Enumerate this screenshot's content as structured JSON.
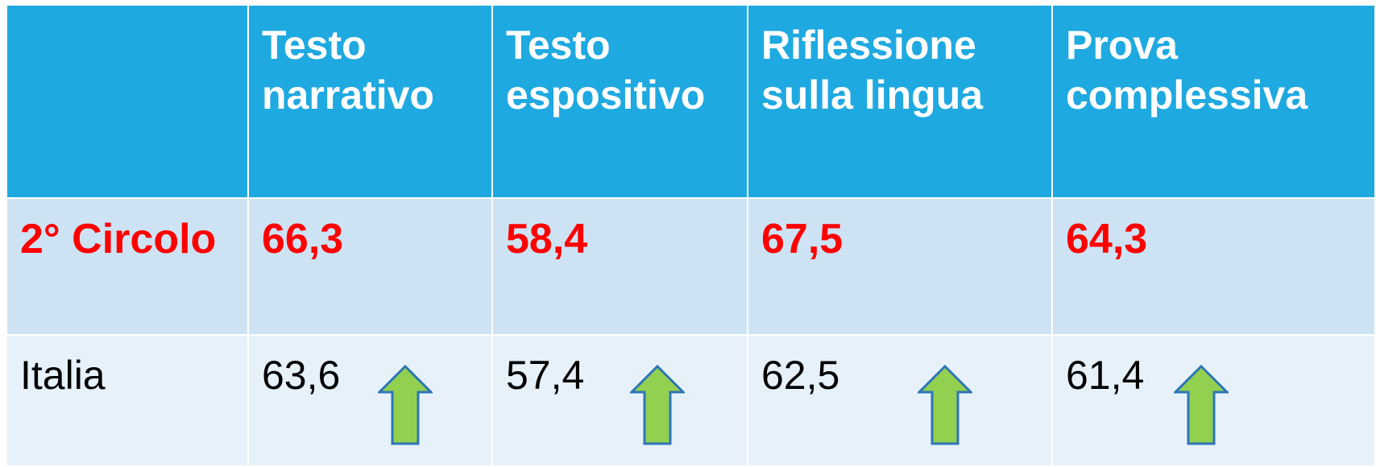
{
  "table": {
    "columns": [
      "Testo narrativo",
      "Testo espositivo",
      "Riflessione sulla lingua",
      "Prova complessiva"
    ],
    "rows": [
      {
        "label": "2° Circolo",
        "values": [
          "66,3",
          "58,4",
          "67,5",
          "64,3"
        ]
      },
      {
        "label": "Italia",
        "values": [
          "63,6",
          "57,4",
          "62,5",
          "61,4"
        ]
      }
    ]
  }
}
